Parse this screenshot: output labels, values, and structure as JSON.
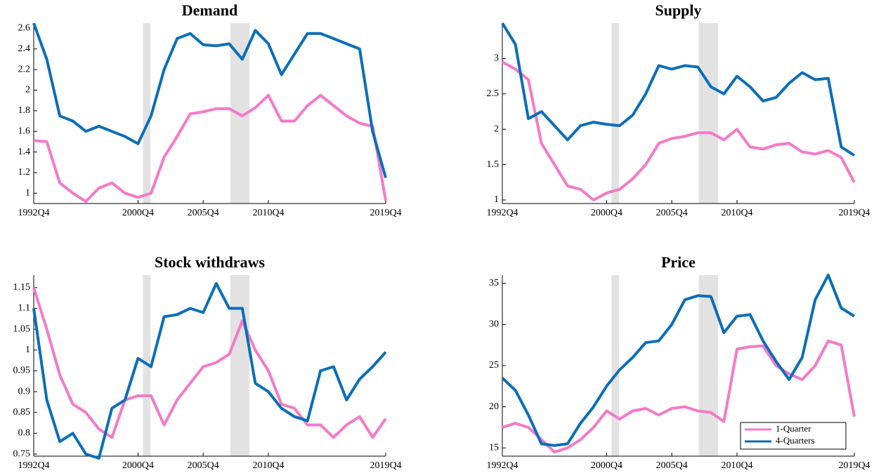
{
  "chart_data": [
    {
      "type": "line",
      "title": "Demand",
      "categories": [
        "1992Q4",
        null,
        null,
        null,
        null,
        null,
        null,
        null,
        "2000Q4",
        null,
        null,
        null,
        null,
        "2005Q4",
        null,
        null,
        null,
        null,
        "2010Q4",
        null,
        null,
        null,
        null,
        null,
        null,
        null,
        null,
        "2019Q4"
      ],
      "series": [
        {
          "name": "1-Quarter",
          "color": "#f47ac8",
          "values": [
            1.51,
            1.5,
            1.1,
            1.0,
            0.92,
            1.05,
            1.1,
            1.0,
            0.96,
            1.0,
            1.35,
            1.55,
            1.77,
            1.79,
            1.82,
            1.82,
            1.75,
            1.83,
            1.95,
            1.7,
            1.7,
            1.85,
            1.95,
            1.85,
            1.75,
            1.68,
            1.65,
            0.93
          ]
        },
        {
          "name": "4-Quarters",
          "color": "#0b6eb8",
          "values": [
            2.65,
            2.3,
            1.75,
            1.7,
            1.6,
            1.65,
            1.6,
            1.55,
            1.48,
            1.75,
            2.2,
            2.5,
            2.55,
            2.44,
            2.43,
            2.45,
            2.3,
            2.58,
            2.45,
            2.15,
            2.35,
            2.55,
            2.55,
            2.5,
            2.45,
            2.4,
            1.6,
            1.15
          ]
        }
      ],
      "ylim": [
        0.9,
        2.65
      ],
      "yticks": [
        1,
        1.2,
        1.4,
        1.6,
        1.8,
        2,
        2.2,
        2.4,
        2.6
      ]
    },
    {
      "type": "line",
      "title": "Supply",
      "categories": [
        "1992Q4",
        null,
        null,
        null,
        null,
        null,
        null,
        null,
        "2000Q4",
        null,
        null,
        null,
        null,
        "2005Q4",
        null,
        null,
        null,
        null,
        "2010Q4",
        null,
        null,
        null,
        null,
        null,
        null,
        null,
        null,
        "2019Q4"
      ],
      "series": [
        {
          "name": "1-Quarter",
          "color": "#f47ac8",
          "values": [
            2.95,
            2.85,
            2.7,
            1.8,
            1.5,
            1.2,
            1.15,
            1.0,
            1.1,
            1.15,
            1.3,
            1.5,
            1.8,
            1.87,
            1.9,
            1.95,
            1.95,
            1.85,
            2.0,
            1.75,
            1.72,
            1.78,
            1.8,
            1.68,
            1.65,
            1.7,
            1.6,
            1.25
          ]
        },
        {
          "name": "4-Quarters",
          "color": "#0b6eb8",
          "values": [
            3.5,
            3.2,
            2.15,
            2.25,
            2.05,
            1.85,
            2.05,
            2.1,
            2.07,
            2.05,
            2.2,
            2.5,
            2.9,
            2.85,
            2.9,
            2.88,
            2.6,
            2.5,
            2.75,
            2.6,
            2.4,
            2.45,
            2.65,
            2.8,
            2.7,
            2.72,
            1.75,
            1.63
          ]
        }
      ],
      "ylim": [
        0.95,
        3.5
      ],
      "yticks": [
        1,
        1.5,
        2,
        2.5,
        3
      ]
    },
    {
      "type": "line",
      "title": "Stock withdraws",
      "categories": [
        "1992Q4",
        null,
        null,
        null,
        null,
        null,
        null,
        null,
        "2000Q4",
        null,
        null,
        null,
        null,
        "2005Q4",
        null,
        null,
        null,
        null,
        "2010Q4",
        null,
        null,
        null,
        null,
        null,
        null,
        null,
        null,
        "2019Q4"
      ],
      "series": [
        {
          "name": "1-Quarter",
          "color": "#f47ac8",
          "values": [
            1.15,
            1.05,
            0.94,
            0.87,
            0.85,
            0.81,
            0.79,
            0.88,
            0.89,
            0.89,
            0.82,
            0.88,
            0.92,
            0.96,
            0.97,
            0.99,
            1.07,
            1.0,
            0.95,
            0.87,
            0.86,
            0.82,
            0.82,
            0.79,
            0.82,
            0.84,
            0.79,
            0.835
          ]
        },
        {
          "name": "4-Quarters",
          "color": "#0b6eb8",
          "values": [
            1.1,
            0.88,
            0.78,
            0.8,
            0.75,
            0.74,
            0.86,
            0.88,
            0.98,
            0.96,
            1.08,
            1.085,
            1.1,
            1.09,
            1.16,
            1.1,
            1.1,
            0.92,
            0.9,
            0.86,
            0.84,
            0.83,
            0.95,
            0.96,
            0.88,
            0.93,
            0.96,
            0.995
          ]
        }
      ],
      "ylim": [
        0.745,
        1.18
      ],
      "yticks": [
        0.75,
        0.8,
        0.85,
        0.9,
        0.95,
        1,
        1.05,
        1.1,
        1.15
      ]
    },
    {
      "type": "line",
      "title": "Price",
      "categories": [
        "1992Q4",
        null,
        null,
        null,
        null,
        null,
        null,
        null,
        "2000Q4",
        null,
        null,
        null,
        null,
        "2005Q4",
        null,
        null,
        null,
        null,
        "2010Q4",
        null,
        null,
        null,
        null,
        null,
        null,
        null,
        null,
        "2019Q4"
      ],
      "series": [
        {
          "name": "1-Quarter",
          "color": "#f47ac8",
          "values": [
            17.5,
            18,
            17.5,
            16,
            14.5,
            15,
            16,
            17.5,
            19.5,
            18.5,
            19.5,
            19.8,
            19,
            19.8,
            20,
            19.5,
            19.3,
            18.2,
            27,
            27.3,
            27.4,
            25,
            24,
            23.3,
            25,
            28,
            27.5,
            18.8
          ]
        },
        {
          "name": "4-Quarters",
          "color": "#0b6eb8",
          "values": [
            23.5,
            22,
            19,
            15.5,
            15.3,
            15.5,
            18,
            20,
            22.5,
            24.5,
            26,
            27.8,
            28,
            30,
            33,
            33.5,
            33.4,
            29,
            31,
            31.2,
            28,
            25.5,
            23.3,
            26,
            33,
            36,
            32,
            31
          ]
        }
      ],
      "ylim": [
        14,
        36
      ],
      "yticks": [
        15,
        20,
        25,
        30,
        35
      ],
      "legend": "lower right"
    }
  ]
}
